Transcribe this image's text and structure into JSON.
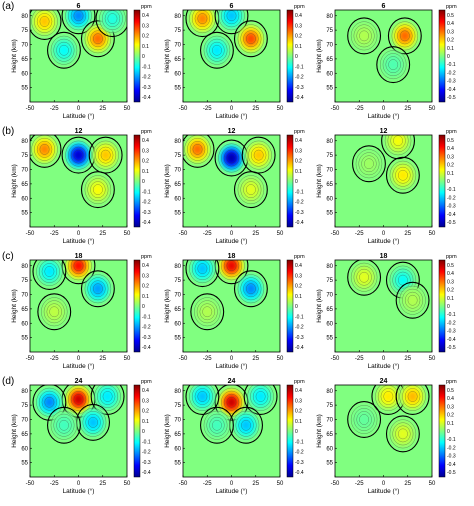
{
  "chart_data": {
    "type": "heatmap",
    "description_rows": [
      "(a)",
      "(b)",
      "(c)",
      "(d)"
    ],
    "row_titles": [
      "6",
      "12",
      "18",
      "24"
    ],
    "xlabel": "Latitude (°)",
    "ylabel": "Height (km)",
    "xlim": [
      -50,
      50
    ],
    "ylim": [
      50,
      82
    ],
    "xticks": [
      "-50",
      "-25",
      "0",
      "25",
      "50"
    ],
    "yticks": [
      "55",
      "60",
      "65",
      "70",
      "75",
      "80"
    ],
    "colorbar_unit": "ppm",
    "colorbar_ticks_col12": [
      "0.4",
      "0.3",
      "0.2",
      "0.1",
      "0",
      "-0.1",
      "-0.2",
      "-0.3",
      "-0.4"
    ],
    "colorbar_ticks_col3": [
      "0.5",
      "0.4",
      "0.3",
      "0.2",
      "0.1",
      "0",
      "-0.1",
      "-0.2",
      "-0.3",
      "-0.4",
      "-0.5"
    ],
    "colormap": [
      "#00008f",
      "#0000ff",
      "#0080ff",
      "#00ffff",
      "#80ff80",
      "#ffff00",
      "#ff8000",
      "#ff0000",
      "#800000"
    ],
    "background_value": 0,
    "features": [
      [
        [
          {
            "lat": -35,
            "h": 78,
            "v": 0.15
          },
          {
            "lat": 0,
            "h": 80,
            "v": -0.2
          },
          {
            "lat": 20,
            "h": 72,
            "v": 0.22
          },
          {
            "lat": -15,
            "h": 68,
            "v": -0.1
          },
          {
            "lat": 35,
            "h": 79,
            "v": -0.08
          }
        ],
        [
          {
            "lat": -30,
            "h": 79,
            "v": 0.2
          },
          {
            "lat": 0,
            "h": 80,
            "v": -0.15
          },
          {
            "lat": 20,
            "h": 72,
            "v": 0.25
          },
          {
            "lat": -15,
            "h": 68,
            "v": -0.12
          }
        ],
        [
          {
            "lat": 22,
            "h": 73,
            "v": 0.28
          },
          {
            "lat": -20,
            "h": 73,
            "v": 0.05
          },
          {
            "lat": 10,
            "h": 63,
            "v": -0.05
          }
        ]
      ],
      [
        [
          {
            "lat": -35,
            "h": 77,
            "v": 0.2
          },
          {
            "lat": 0,
            "h": 75,
            "v": -0.35
          },
          {
            "lat": 28,
            "h": 75,
            "v": 0.15
          },
          {
            "lat": 20,
            "h": 63,
            "v": 0.1
          }
        ],
        [
          {
            "lat": -35,
            "h": 77,
            "v": 0.22
          },
          {
            "lat": 0,
            "h": 74,
            "v": -0.38
          },
          {
            "lat": 28,
            "h": 75,
            "v": 0.15
          },
          {
            "lat": 20,
            "h": 63,
            "v": 0.08
          }
        ],
        [
          {
            "lat": 15,
            "h": 80,
            "v": 0.12
          },
          {
            "lat": 20,
            "h": 68,
            "v": 0.15
          },
          {
            "lat": -15,
            "h": 72,
            "v": 0.03
          }
        ]
      ],
      [
        [
          {
            "lat": 0,
            "h": 80,
            "v": 0.3
          },
          {
            "lat": -30,
            "h": 78,
            "v": -0.12
          },
          {
            "lat": 20,
            "h": 72,
            "v": -0.18
          },
          {
            "lat": -25,
            "h": 64,
            "v": 0.05
          }
        ],
        [
          {
            "lat": 0,
            "h": 80,
            "v": 0.32
          },
          {
            "lat": -30,
            "h": 79,
            "v": -0.15
          },
          {
            "lat": 20,
            "h": 72,
            "v": -0.2
          },
          {
            "lat": -25,
            "h": 64,
            "v": 0.04
          }
        ],
        [
          {
            "lat": -20,
            "h": 76,
            "v": 0.1
          },
          {
            "lat": 20,
            "h": 75,
            "v": -0.12
          },
          {
            "lat": 30,
            "h": 68,
            "v": 0.05
          }
        ]
      ],
      [
        [
          {
            "lat": 0,
            "h": 77,
            "v": 0.35
          },
          {
            "lat": -30,
            "h": 76,
            "v": -0.2
          },
          {
            "lat": 30,
            "h": 78,
            "v": -0.12
          },
          {
            "lat": 15,
            "h": 69,
            "v": -0.15
          },
          {
            "lat": -15,
            "h": 68,
            "v": -0.05
          }
        ],
        [
          {
            "lat": 0,
            "h": 76,
            "v": 0.35
          },
          {
            "lat": -30,
            "h": 78,
            "v": -0.15
          },
          {
            "lat": 30,
            "h": 78,
            "v": -0.12
          },
          {
            "lat": 15,
            "h": 68,
            "v": -0.15
          },
          {
            "lat": -15,
            "h": 68,
            "v": -0.05
          }
        ],
        [
          {
            "lat": 5,
            "h": 78,
            "v": 0.15
          },
          {
            "lat": 30,
            "h": 78,
            "v": 0.2
          },
          {
            "lat": 20,
            "h": 65,
            "v": 0.1
          },
          {
            "lat": -20,
            "h": 70,
            "v": -0.03
          }
        ]
      ]
    ]
  }
}
